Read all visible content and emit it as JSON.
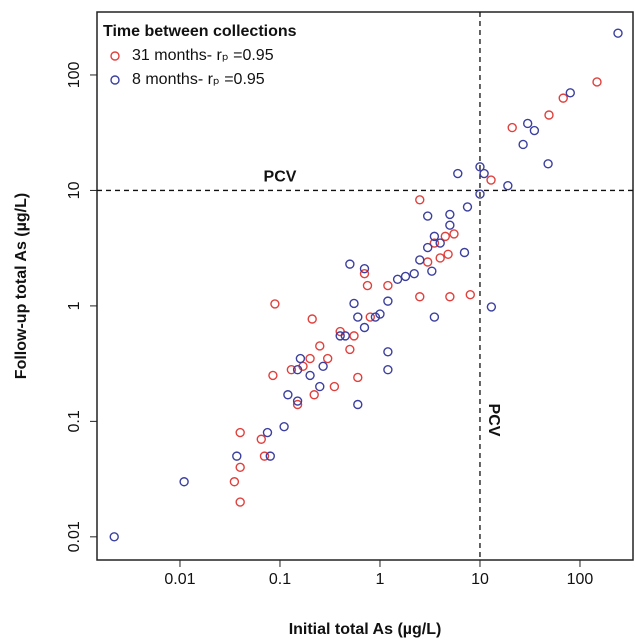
{
  "chart_data": {
    "type": "scatter",
    "x_label": "Initial total As (µg/L)",
    "y_label": "Follow-up total As (µg/L)",
    "legend_title": "Time between collections",
    "legend_position": "top-left",
    "log_x": true,
    "log_y": true,
    "xlim": [
      0.00148,
      339
    ],
    "ylim": [
      0.0063,
      351
    ],
    "xticks": [
      0.01,
      0.1,
      1,
      10,
      100
    ],
    "yticks": [
      0.01,
      0.1,
      1,
      10,
      100
    ],
    "reference_lines": [
      {
        "axis": "y",
        "value": 10,
        "label": "PCV"
      },
      {
        "axis": "x",
        "value": 10,
        "label": "PCV"
      }
    ],
    "series": [
      {
        "name": "31 months- rₚ =0.95",
        "color": "#e0403c",
        "x": [
          148,
          68,
          49,
          21,
          12.9,
          2.5,
          0.089,
          0.21,
          0.085,
          0.035,
          0.04,
          0.04,
          0.04,
          0.07,
          0.065,
          0.13,
          0.15,
          0.17,
          0.2,
          0.22,
          0.25,
          0.35,
          0.4,
          0.5,
          0.6,
          0.7,
          0.75,
          0.8,
          1.2,
          2.5,
          3,
          3.5,
          4,
          4.5,
          4.8,
          5,
          5.5,
          8,
          0.55,
          0.3
        ],
        "values": [
          87,
          63,
          45,
          35,
          12.3,
          8.3,
          1.04,
          0.77,
          0.25,
          0.03,
          0.04,
          0.08,
          0.02,
          0.05,
          0.07,
          0.28,
          0.14,
          0.3,
          0.35,
          0.17,
          0.45,
          0.2,
          0.6,
          0.42,
          0.24,
          1.9,
          1.5,
          0.8,
          1.5,
          1.2,
          2.4,
          3.5,
          2.6,
          4,
          2.8,
          1.2,
          4.2,
          1.25,
          0.55,
          0.35
        ]
      },
      {
        "name": "8 months- rₚ =0.95",
        "color": "#3b3f9e",
        "x": [
          240,
          80,
          30,
          35,
          27,
          48,
          19,
          10,
          11,
          10,
          6,
          7.5,
          13,
          7,
          5,
          5,
          3,
          3.5,
          4,
          3,
          3.3,
          2.5,
          3.5,
          2.2,
          1.8,
          1.5,
          1.2,
          1,
          0.9,
          0.7,
          0.6,
          0.5,
          0.7,
          0.55,
          0.45,
          1.2,
          1.2,
          0.6,
          0.4,
          0.27,
          0.25,
          0.2,
          0.15,
          0.16,
          0.12,
          0.11,
          0.15,
          0.075,
          0.08,
          0.037,
          0.011,
          0.0022
        ],
        "values": [
          230,
          70,
          38,
          33,
          25,
          17,
          11,
          16,
          14,
          9.3,
          14,
          7.2,
          0.98,
          2.9,
          6.2,
          5,
          6,
          4,
          3.5,
          3.2,
          2,
          2.5,
          0.8,
          1.9,
          1.8,
          1.7,
          1.1,
          0.85,
          0.8,
          0.65,
          0.8,
          2.3,
          2.1,
          1.05,
          0.55,
          0.4,
          0.28,
          0.14,
          0.55,
          0.3,
          0.2,
          0.25,
          0.28,
          0.35,
          0.17,
          0.09,
          0.15,
          0.08,
          0.05,
          0.05,
          0.03,
          0.01
        ]
      }
    ]
  }
}
